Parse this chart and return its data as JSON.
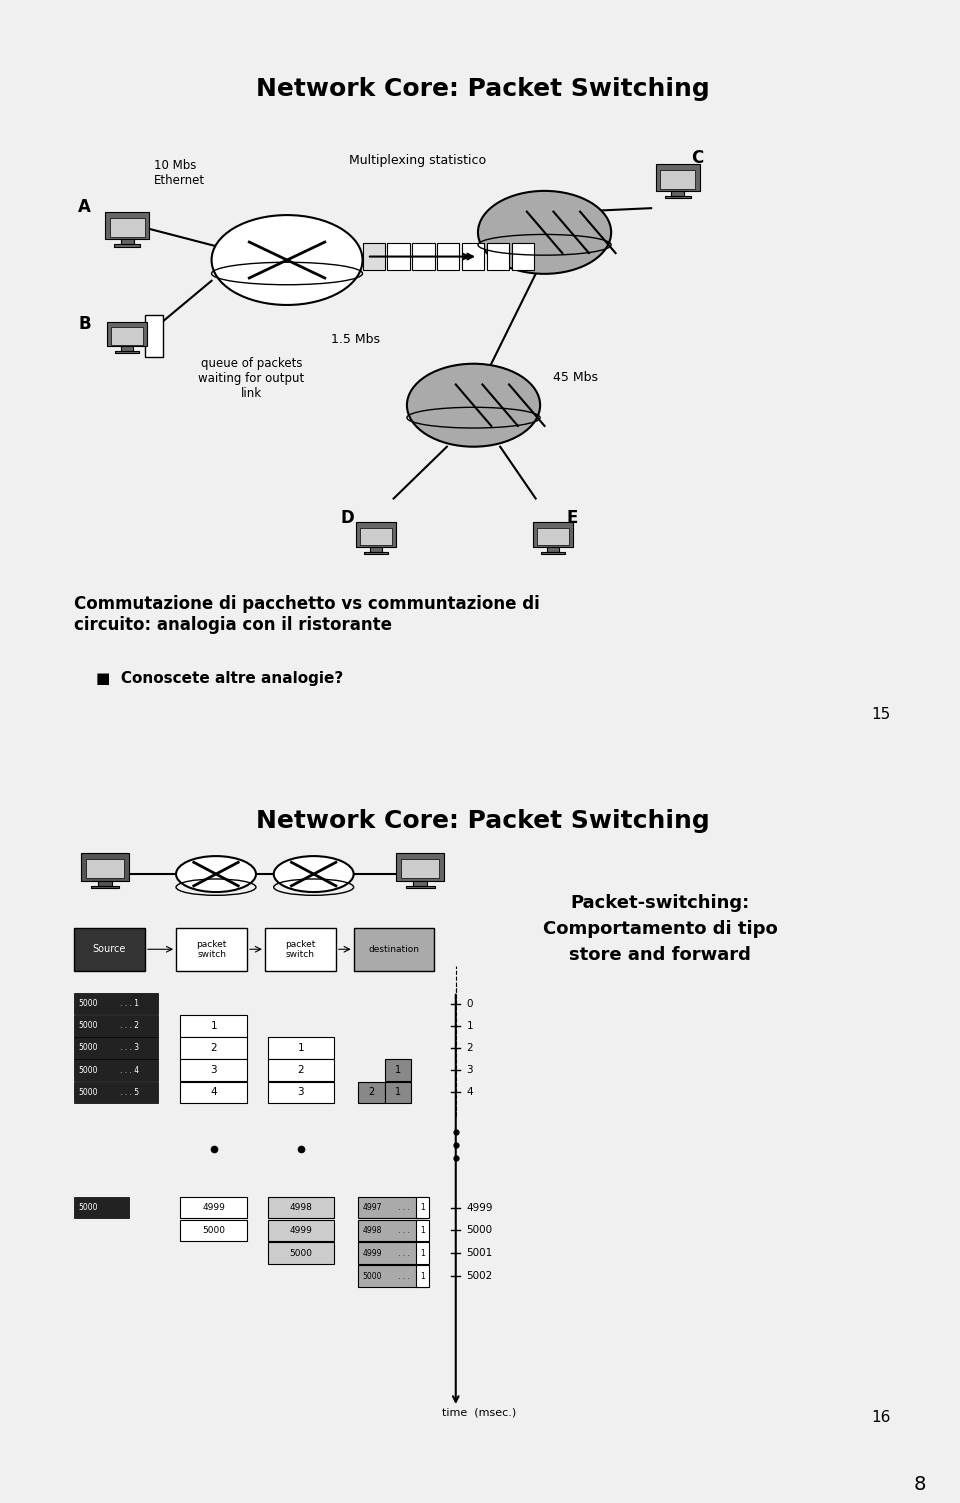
{
  "slide1": {
    "title": "Network Core: Packet Switching",
    "page_num": "15",
    "body_text": "Commutazione di pacchetto vs communtazione di\ncircuito: analogia con il ristorante",
    "bullet": "Conoscete altre analogie?"
  },
  "slide2": {
    "title": "Network Core: Packet Switching",
    "page_num": "16",
    "right_text": "Packet-switching:\nComportamento di tipo\nstore and forward"
  },
  "page_num_bottom": "8",
  "background_color": "#f0f0f0",
  "slide_bg": "#ffffff",
  "border_color": "#000000",
  "text_color": "#000000"
}
